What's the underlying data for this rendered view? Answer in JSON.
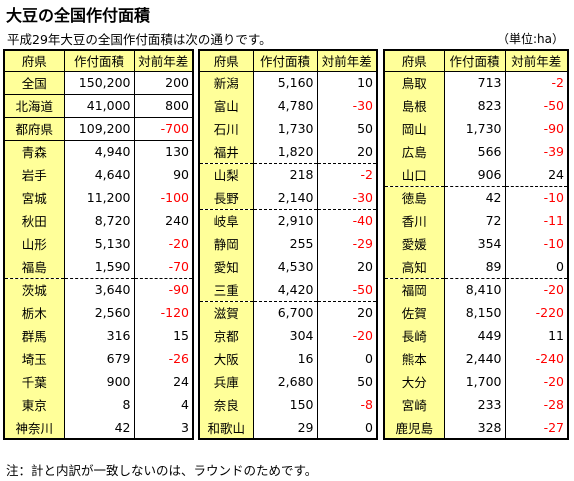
{
  "title": "大豆の全国作付面積",
  "subtitle": "平成29年大豆の全国作付面積は次の通りです。",
  "unit": "（単位:ha）",
  "note": "注：計と内訳が一致しないのは、ラウンドのためです。",
  "headers": {
    "pref": "府県",
    "area": "作付面積",
    "diff": "対前年差"
  },
  "blocks": [
    {
      "rows": [
        {
          "pref": "全国",
          "area": "150,200",
          "diff": "200",
          "neg": false,
          "sep": ""
        },
        {
          "pref": "北海道",
          "area": "41,000",
          "diff": "800",
          "neg": false,
          "sep": "solid"
        },
        {
          "pref": "都府県",
          "area": "109,200",
          "diff": "-700",
          "neg": true,
          "sep": "solid"
        },
        {
          "pref": "青森",
          "area": "4,940",
          "diff": "130",
          "neg": false,
          "sep": "solid"
        },
        {
          "pref": "岩手",
          "area": "4,640",
          "diff": "90",
          "neg": false,
          "sep": ""
        },
        {
          "pref": "宮城",
          "area": "11,200",
          "diff": "-100",
          "neg": true,
          "sep": ""
        },
        {
          "pref": "秋田",
          "area": "8,720",
          "diff": "240",
          "neg": false,
          "sep": ""
        },
        {
          "pref": "山形",
          "area": "5,130",
          "diff": "-20",
          "neg": true,
          "sep": ""
        },
        {
          "pref": "福島",
          "area": "1,590",
          "diff": "-70",
          "neg": true,
          "sep": ""
        },
        {
          "pref": "茨城",
          "area": "3,640",
          "diff": "-90",
          "neg": true,
          "sep": "dash"
        },
        {
          "pref": "栃木",
          "area": "2,560",
          "diff": "-120",
          "neg": true,
          "sep": ""
        },
        {
          "pref": "群馬",
          "area": "316",
          "diff": "15",
          "neg": false,
          "sep": ""
        },
        {
          "pref": "埼玉",
          "area": "679",
          "diff": "-26",
          "neg": true,
          "sep": ""
        },
        {
          "pref": "千葉",
          "area": "900",
          "diff": "24",
          "neg": false,
          "sep": ""
        },
        {
          "pref": "東京",
          "area": "8",
          "diff": "4",
          "neg": false,
          "sep": ""
        },
        {
          "pref": "神奈川",
          "area": "42",
          "diff": "3",
          "neg": false,
          "sep": ""
        }
      ]
    },
    {
      "rows": [
        {
          "pref": "新潟",
          "area": "5,160",
          "diff": "10",
          "neg": false,
          "sep": ""
        },
        {
          "pref": "富山",
          "area": "4,780",
          "diff": "-30",
          "neg": true,
          "sep": ""
        },
        {
          "pref": "石川",
          "area": "1,730",
          "diff": "50",
          "neg": false,
          "sep": ""
        },
        {
          "pref": "福井",
          "area": "1,820",
          "diff": "20",
          "neg": false,
          "sep": ""
        },
        {
          "pref": "山梨",
          "area": "218",
          "diff": "-2",
          "neg": true,
          "sep": "dash"
        },
        {
          "pref": "長野",
          "area": "2,140",
          "diff": "-30",
          "neg": true,
          "sep": ""
        },
        {
          "pref": "岐阜",
          "area": "2,910",
          "diff": "-40",
          "neg": true,
          "sep": "dash"
        },
        {
          "pref": "静岡",
          "area": "255",
          "diff": "-29",
          "neg": true,
          "sep": ""
        },
        {
          "pref": "愛知",
          "area": "4,530",
          "diff": "20",
          "neg": false,
          "sep": ""
        },
        {
          "pref": "三重",
          "area": "4,420",
          "diff": "-50",
          "neg": true,
          "sep": ""
        },
        {
          "pref": "滋賀",
          "area": "6,700",
          "diff": "20",
          "neg": false,
          "sep": "dash"
        },
        {
          "pref": "京都",
          "area": "304",
          "diff": "-20",
          "neg": true,
          "sep": ""
        },
        {
          "pref": "大阪",
          "area": "16",
          "diff": "0",
          "neg": false,
          "sep": ""
        },
        {
          "pref": "兵庫",
          "area": "2,680",
          "diff": "50",
          "neg": false,
          "sep": ""
        },
        {
          "pref": "奈良",
          "area": "150",
          "diff": "-8",
          "neg": true,
          "sep": ""
        },
        {
          "pref": "和歌山",
          "area": "29",
          "diff": "0",
          "neg": false,
          "sep": ""
        }
      ]
    },
    {
      "rows": [
        {
          "pref": "鳥取",
          "area": "713",
          "diff": "-2",
          "neg": true,
          "sep": ""
        },
        {
          "pref": "島根",
          "area": "823",
          "diff": "-50",
          "neg": true,
          "sep": ""
        },
        {
          "pref": "岡山",
          "area": "1,730",
          "diff": "-90",
          "neg": true,
          "sep": ""
        },
        {
          "pref": "広島",
          "area": "566",
          "diff": "-39",
          "neg": true,
          "sep": ""
        },
        {
          "pref": "山口",
          "area": "906",
          "diff": "24",
          "neg": false,
          "sep": ""
        },
        {
          "pref": "徳島",
          "area": "42",
          "diff": "-10",
          "neg": true,
          "sep": "dash"
        },
        {
          "pref": "香川",
          "area": "72",
          "diff": "-11",
          "neg": true,
          "sep": ""
        },
        {
          "pref": "愛媛",
          "area": "354",
          "diff": "-10",
          "neg": true,
          "sep": ""
        },
        {
          "pref": "高知",
          "area": "89",
          "diff": "0",
          "neg": false,
          "sep": ""
        },
        {
          "pref": "福岡",
          "area": "8,410",
          "diff": "-20",
          "neg": true,
          "sep": "dash"
        },
        {
          "pref": "佐賀",
          "area": "8,150",
          "diff": "-220",
          "neg": true,
          "sep": ""
        },
        {
          "pref": "長崎",
          "area": "449",
          "diff": "11",
          "neg": false,
          "sep": ""
        },
        {
          "pref": "熊本",
          "area": "2,440",
          "diff": "-240",
          "neg": true,
          "sep": ""
        },
        {
          "pref": "大分",
          "area": "1,700",
          "diff": "-20",
          "neg": true,
          "sep": ""
        },
        {
          "pref": "宮崎",
          "area": "233",
          "diff": "-28",
          "neg": true,
          "sep": ""
        },
        {
          "pref": "鹿児島",
          "area": "328",
          "diff": "-27",
          "neg": true,
          "sep": ""
        }
      ]
    }
  ]
}
